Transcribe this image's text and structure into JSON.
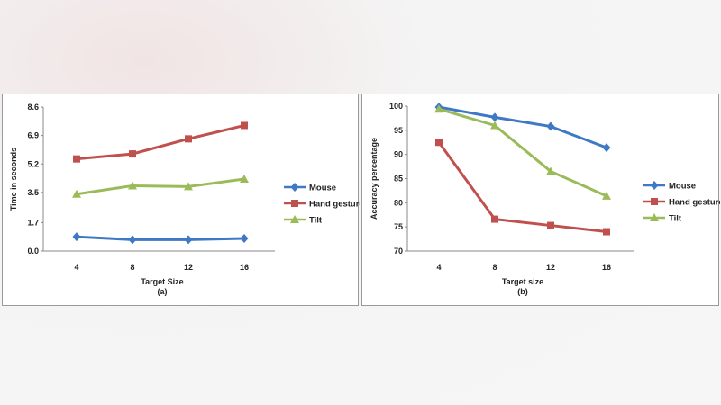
{
  "chart_data": [
    {
      "type": "line",
      "categories": [
        "4",
        "8",
        "12",
        "16"
      ],
      "series": [
        {
          "name": "Mouse",
          "values": [
            0.85,
            0.68,
            0.68,
            0.75
          ],
          "color": "#3f78c4",
          "marker": "diamond"
        },
        {
          "name": "Hand gesture",
          "values": [
            5.5,
            5.8,
            6.7,
            7.5
          ],
          "color": "#c0504d",
          "marker": "square"
        },
        {
          "name": "Tilt",
          "values": [
            3.4,
            3.9,
            3.85,
            4.3
          ],
          "color": "#9bbb59",
          "marker": "triangle"
        }
      ],
      "yticks": [
        "0.0",
        "1.7",
        "3.5",
        "5.2",
        "6.9",
        "8.6"
      ],
      "ylim": [
        0,
        8.6
      ],
      "xlabel": "Target Size",
      "caption": "(a)",
      "ylabel": "Time in seconds",
      "legend": "right"
    },
    {
      "type": "line",
      "categories": [
        "4",
        "8",
        "12",
        "16"
      ],
      "series": [
        {
          "name": "Mouse",
          "values": [
            99.8,
            97.7,
            95.8,
            91.4
          ],
          "color": "#3f78c4",
          "marker": "diamond"
        },
        {
          "name": "Hand gesture",
          "values": [
            92.5,
            76.6,
            75.3,
            74.0
          ],
          "color": "#c0504d",
          "marker": "square"
        },
        {
          "name": "Tilt",
          "values": [
            99.4,
            96.0,
            86.5,
            81.4
          ],
          "color": "#9bbb59",
          "marker": "triangle"
        }
      ],
      "yticks": [
        "100",
        "95",
        "90",
        "85",
        "80",
        "75",
        "70"
      ],
      "ylim": [
        70,
        100
      ],
      "xlabel": "Target size",
      "caption": "(b)",
      "ylabel": "Accuracy percentage",
      "legend": "right"
    }
  ]
}
